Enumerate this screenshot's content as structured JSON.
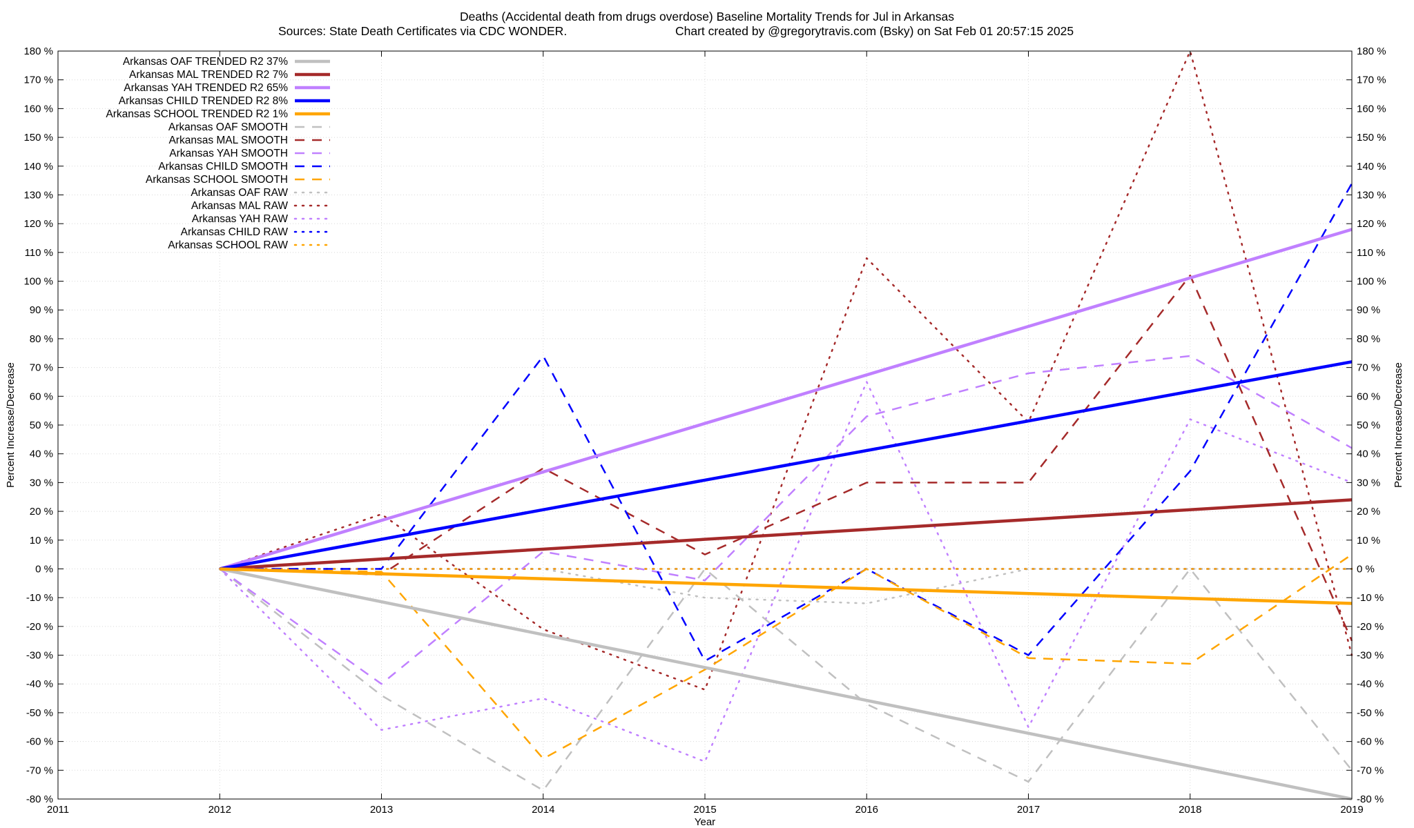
{
  "chart_data": {
    "type": "line",
    "title": "Deaths (Accidental death from drugs overdose)  Baseline Mortality Trends for Jul in Arkansas",
    "subtitle_left": "Sources: State Death Certificates via CDC WONDER.",
    "subtitle_right": "Chart created by @gregorytravis.com (Bsky) on Sat Feb 01 20:57:15 2025",
    "xlabel": "Year",
    "ylabel_left": "Percent Increase/Decrease",
    "ylabel_right": "Percent Increase/Decrease",
    "xlim": [
      2011,
      2019
    ],
    "ylim": [
      -80,
      180
    ],
    "x_ticks": [
      "2011",
      "2012",
      "2013",
      "2014",
      "2015",
      "2016",
      "2017",
      "2018",
      "2019"
    ],
    "y_ticks": [
      "-80 %",
      "-70 %",
      "-60 %",
      "-50 %",
      "-40 %",
      "-30 %",
      "-20 %",
      "-10 %",
      "0 %",
      "10 %",
      "20 %",
      "30 %",
      "40 %",
      "50 %",
      "60 %",
      "70 %",
      "80 %",
      "90 %",
      "100 %",
      "110 %",
      "120 %",
      "130 %",
      "140 %",
      "150 %",
      "160 %",
      "170 %",
      "180 %"
    ],
    "grid": true,
    "legend_position": "top-left",
    "series": [
      {
        "name": "Arkansas OAF TRENDED R2  37%",
        "color": "#c0c0c0",
        "style": "solid",
        "x": [
          2012,
          2019
        ],
        "y": [
          0,
          -80
        ]
      },
      {
        "name": "Arkansas MAL TRENDED R2   7%",
        "color": "#a52a2a",
        "style": "solid",
        "x": [
          2012,
          2019
        ],
        "y": [
          0,
          24
        ]
      },
      {
        "name": "Arkansas YAH TRENDED R2  65%",
        "color": "#c080ff",
        "style": "solid",
        "x": [
          2012,
          2019
        ],
        "y": [
          0,
          118
        ]
      },
      {
        "name": "Arkansas CHILD TRENDED R2   8%",
        "color": "#0000ff",
        "style": "solid",
        "x": [
          2012,
          2019
        ],
        "y": [
          0,
          72
        ]
      },
      {
        "name": "Arkansas SCHOOL TRENDED R2   1%",
        "color": "#ffa500",
        "style": "solid",
        "x": [
          2012,
          2019
        ],
        "y": [
          0,
          -12
        ]
      },
      {
        "name": "Arkansas OAF SMOOTH",
        "color": "#c0c0c0",
        "style": "dashed",
        "x": [
          2012,
          2013,
          2014,
          2015,
          2016,
          2017,
          2018,
          2019
        ],
        "y": [
          0,
          -44,
          -77,
          0,
          -47,
          -74,
          0,
          -70
        ]
      },
      {
        "name": "Arkansas MAL SMOOTH",
        "color": "#a52a2a",
        "style": "dashed",
        "x": [
          2012,
          2013,
          2014,
          2015,
          2016,
          2017,
          2018,
          2019
        ],
        "y": [
          0,
          -2,
          35,
          5,
          30,
          30,
          102,
          -25
        ]
      },
      {
        "name": "Arkansas YAH SMOOTH",
        "color": "#c080ff",
        "style": "dashed",
        "x": [
          2012,
          2013,
          2014,
          2015,
          2016,
          2017,
          2018,
          2019
        ],
        "y": [
          0,
          -40,
          6,
          -4,
          53,
          68,
          74,
          42
        ]
      },
      {
        "name": "Arkansas CHILD SMOOTH",
        "color": "#0000ff",
        "style": "dashed",
        "x": [
          2012,
          2013,
          2014,
          2015,
          2016,
          2017,
          2018,
          2019
        ],
        "y": [
          0,
          0,
          74,
          -32,
          0,
          -30,
          34,
          134
        ]
      },
      {
        "name": "Arkansas SCHOOL SMOOTH",
        "color": "#ffa500",
        "style": "dashed",
        "x": [
          2012,
          2013,
          2014,
          2015,
          2016,
          2017,
          2018,
          2019
        ],
        "y": [
          0,
          -1,
          -66,
          -35,
          0,
          -31,
          -33,
          5
        ]
      },
      {
        "name": "Arkansas OAF RAW",
        "color": "#c0c0c0",
        "style": "dotted",
        "x": [
          2012,
          2013,
          2014,
          2015,
          2016,
          2017,
          2018,
          2019
        ],
        "y": [
          0,
          0,
          0,
          -10,
          -12,
          0,
          0,
          0
        ]
      },
      {
        "name": "Arkansas MAL RAW",
        "color": "#a52a2a",
        "style": "dotted",
        "x": [
          2012,
          2013,
          2014,
          2015,
          2016,
          2017,
          2018,
          2019
        ],
        "y": [
          0,
          19,
          -21,
          -42,
          108,
          51,
          180,
          -30
        ]
      },
      {
        "name": "Arkansas YAH RAW",
        "color": "#c080ff",
        "style": "dotted",
        "x": [
          2012,
          2013,
          2014,
          2015,
          2016,
          2017,
          2018,
          2019
        ],
        "y": [
          0,
          -56,
          -45,
          -67,
          65,
          -55,
          52,
          30
        ]
      },
      {
        "name": "Arkansas CHILD RAW",
        "color": "#0000ff",
        "style": "dotted",
        "x": [
          2012,
          2013,
          2014,
          2015,
          2016,
          2017,
          2018,
          2019
        ],
        "y": [
          0,
          0,
          0,
          0,
          0,
          0,
          0,
          0
        ]
      },
      {
        "name": "Arkansas SCHOOL RAW",
        "color": "#ffa500",
        "style": "dotted",
        "x": [
          2012,
          2013,
          2014,
          2015,
          2016,
          2017,
          2018,
          2019
        ],
        "y": [
          0,
          0,
          0,
          0,
          0,
          0,
          0,
          0
        ]
      }
    ]
  }
}
